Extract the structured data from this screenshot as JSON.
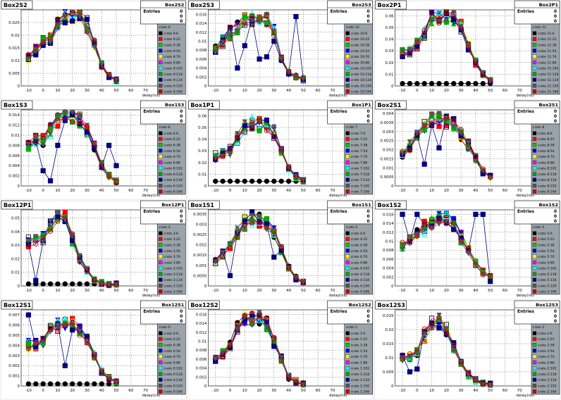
{
  "chart_data": [
    {
      "id": "p1",
      "type": "scatter",
      "title": "Box2S2",
      "ylabel_ticks": [
        "0",
        "0.005",
        "0.01",
        "0.015",
        "0.02",
        "0.025"
      ],
      "ylim": [
        0,
        0.03
      ],
      "xlim": [
        -15,
        80
      ],
      "xticks": [
        "-10",
        "0",
        "10",
        "20",
        "30",
        "40",
        "50",
        "60",
        "70",
        "80"
      ],
      "xlabel": "delay(ns)",
      "stats": {
        "header": "Box2S2",
        "label": "Entries",
        "rows": [
          "0",
          "0",
          "0"
        ]
      },
      "legend_title": "crate 9",
      "legend": [
        "crate 9:6",
        "crate 9:22",
        "crate 9:38",
        "crate 9:54",
        "crate 9:70",
        "crate 9:86",
        "crate 9:102",
        "crate 9:118",
        "crate 9:134",
        "crate 9:150",
        "crate 9:166"
      ],
      "anchor": [
        0.011,
        0.014,
        0.018,
        0.019,
        0.025,
        0.027,
        0.027,
        0.028,
        0.024,
        0.016,
        0.008,
        0.004,
        0.002
      ],
      "baseline": null,
      "outlier": null
    },
    {
      "id": "p2",
      "type": "scatter",
      "title": "Box2S3",
      "ylabel_ticks": [
        "0",
        "0.002",
        "0.004",
        "0.006",
        "0.008",
        "0.01",
        "0.012",
        "0.014",
        "0.016"
      ],
      "ylim": [
        0,
        0.017
      ],
      "xlim": [
        -15,
        80
      ],
      "xticks": [
        "-10",
        "0",
        "10",
        "20",
        "30",
        "40",
        "50",
        "60",
        "70",
        "80"
      ],
      "xlabel": "delay(ns)",
      "stats": {
        "header": "Box2S3",
        "label": "Entries",
        "rows": [
          "0",
          "0",
          "0"
        ]
      },
      "legend_title": "crate 10",
      "legend": [
        "crate 10:6",
        "crate 10:22",
        "crate 10:38",
        "crate 10:54",
        "crate 10:70",
        "crate 10:86",
        "crate 10:102",
        "crate 10:118",
        "crate 10:134",
        "crate 10:150",
        "crate 10:166"
      ],
      "anchor": [
        0.008,
        0.01,
        0.012,
        0.013,
        0.015,
        0.015,
        0.014,
        0.015,
        0.012,
        0.006,
        0.003,
        0.002,
        0.0015
      ],
      "baseline": null,
      "outlier": [
        [
          45,
          0.0155
        ],
        [
          10,
          0.009
        ],
        [
          20,
          0.006
        ],
        [
          25,
          0.0065
        ],
        [
          5,
          0.004
        ],
        [
          30,
          0.01
        ]
      ]
    },
    {
      "id": "p3",
      "type": "scatter",
      "title": "Box2P1",
      "ylabel_ticks": [
        "0",
        "0.01",
        "0.02",
        "0.03",
        "0.04",
        "0.05",
        "0.06"
      ],
      "ylim": [
        0,
        0.065
      ],
      "xlim": [
        -15,
        80
      ],
      "xticks": [
        "-10",
        "0",
        "10",
        "20",
        "30",
        "40",
        "50",
        "60",
        "70",
        "80"
      ],
      "xlabel": "delay(ns)",
      "stats": {
        "header": "Box2P1",
        "label": "Entries",
        "rows": [
          "0",
          "0",
          "0"
        ]
      },
      "legend_title": "crate 11",
      "legend": [
        "crate 11:6",
        "crate 11:22",
        "crate 11:38",
        "crate 11:54",
        "crate 11:70",
        "crate 11:86",
        "crate 11:102",
        "crate 11:118",
        "crate 11:134",
        "crate 11:150",
        "crate 11:166"
      ],
      "anchor": [
        0.028,
        0.03,
        0.035,
        0.045,
        0.058,
        0.06,
        0.06,
        0.058,
        0.05,
        0.035,
        0.02,
        0.01,
        0.005
      ],
      "baseline": 0.002,
      "outlier": null
    },
    {
      "id": "p4",
      "type": "scatter",
      "title": "Box1S3",
      "ylabel_ticks": [
        "0",
        "0.002",
        "0.004",
        "0.006",
        "0.008",
        "0.01",
        "0.012",
        "0.014"
      ],
      "ylim": [
        0,
        0.015
      ],
      "xlim": [
        -15,
        80
      ],
      "xticks": [
        "-10",
        "0",
        "10",
        "20",
        "30",
        "40",
        "50",
        "60",
        "70",
        "80"
      ],
      "xlabel": "delay(ns)",
      "stats": {
        "header": "Box1S3",
        "label": "Entries",
        "rows": [
          "0",
          "0",
          "0"
        ]
      },
      "legend_title": "crate 6",
      "legend": [
        "crate 6:6",
        "crate 6:22",
        "crate 6:38",
        "crate 6:54",
        "crate 6:70",
        "crate 6:86",
        "crate 6:102",
        "crate 6:118",
        "crate 6:134",
        "crate 6:150",
        "crate 6:166"
      ],
      "anchor": [
        0.008,
        0.009,
        0.009,
        0.011,
        0.013,
        0.014,
        0.014,
        0.013,
        0.011,
        0.008,
        0.004,
        0.002,
        0.001
      ],
      "baseline": null,
      "outlier": [
        [
          0,
          0.003
        ],
        [
          5,
          0.001
        ],
        [
          10,
          0.008
        ],
        [
          45,
          0.008
        ],
        [
          50,
          0.004
        ]
      ]
    },
    {
      "id": "p5",
      "type": "scatter",
      "title": "Box1P1",
      "ylabel_ticks": [
        "0",
        "0.01",
        "0.02",
        "0.03",
        "0.04",
        "0.05",
        "0.06"
      ],
      "ylim": [
        0,
        0.065
      ],
      "xlim": [
        -15,
        80
      ],
      "xticks": [
        "-10",
        "0",
        "10",
        "20",
        "30",
        "40",
        "50",
        "60",
        "70",
        "80"
      ],
      "xlabel": "delay(ns)",
      "stats": {
        "header": "Box1P1",
        "label": "Entries",
        "rows": [
          "0",
          "0",
          "0"
        ]
      },
      "legend_title": "crate 7",
      "legend": [
        "crate 7:6",
        "crate 7:22",
        "crate 7:38",
        "crate 7:54",
        "crate 7:70",
        "crate 7:86",
        "crate 7:102",
        "crate 7:118",
        "crate 7:134",
        "crate 7:150",
        "crate 7:166"
      ],
      "anchor": [
        0.025,
        0.028,
        0.03,
        0.04,
        0.05,
        0.053,
        0.053,
        0.052,
        0.045,
        0.03,
        0.015,
        0.008,
        0.004
      ],
      "baseline": 0.004,
      "outlier": null
    },
    {
      "id": "p6",
      "type": "scatter",
      "title": "Box2S1",
      "ylabel_ticks": [
        "0",
        "0.0005",
        "0.001",
        "0.0015",
        "0.002",
        "0.0025",
        "0.003",
        "0.0035",
        "0.004"
      ],
      "ylim": [
        0,
        0.0042
      ],
      "xlim": [
        -15,
        80
      ],
      "xticks": [
        "-10",
        "0",
        "10",
        "20",
        "30",
        "40",
        "50",
        "60",
        "70",
        "80"
      ],
      "xlabel": "delay(ns)",
      "stats": {
        "header": "Box2S1",
        "label": "Entries",
        "rows": [
          "0",
          "0",
          "0"
        ]
      },
      "legend_title": "crate 8",
      "legend": [
        "crate 8:6",
        "crate 8:22",
        "crate 8:38",
        "crate 8:54",
        "crate 8:70",
        "crate 8:86",
        "crate 8:102",
        "crate 8:118",
        "crate 8:134",
        "crate 8:150",
        "crate 8:166"
      ],
      "anchor": [
        0.0018,
        0.0022,
        0.0028,
        0.0033,
        0.0037,
        0.0037,
        0.0036,
        0.0034,
        0.0028,
        0.0022,
        0.0015,
        0.0008,
        0.0005
      ],
      "baseline": null,
      "outlier": [
        [
          15,
          0.0021
        ],
        [
          5,
          0.0012
        ]
      ]
    },
    {
      "id": "p7",
      "type": "scatter",
      "title": "Box12P1",
      "ylabel_ticks": [
        "0",
        "0.01",
        "0.02",
        "0.03",
        "0.04",
        "0.05"
      ],
      "ylim": [
        0,
        0.056
      ],
      "xlim": [
        -15,
        80
      ],
      "xticks": [
        "-10",
        "0",
        "10",
        "20",
        "30",
        "40",
        "50",
        "60",
        "70",
        "80"
      ],
      "xlabel": "delay(ns)",
      "stats": {
        "header": "Box12P1",
        "label": "Entries",
        "rows": [
          "0",
          "0",
          "0"
        ]
      },
      "legend_title": "crate 3",
      "legend": [
        "crate 3:6",
        "crate 3:22",
        "crate 3:38",
        "crate 3:54",
        "crate 3:70",
        "crate 3:86",
        "crate 3:102",
        "crate 3:118",
        "crate 3:134",
        "crate 3:150",
        "crate 3:166"
      ],
      "anchor": [
        0.032,
        0.034,
        0.035,
        0.045,
        0.052,
        0.05,
        0.035,
        0.02,
        0.012,
        0.005,
        0.002,
        0.001,
        0.001
      ],
      "baseline": 0.0015,
      "outlier": [
        [
          -5,
          0.004
        ]
      ]
    },
    {
      "id": "p8",
      "type": "scatter",
      "title": "Box1S1",
      "ylabel_ticks": [
        "0",
        "0.0005",
        "0.001",
        "0.0015",
        "0.002",
        "0.0025",
        "0.003",
        "0.0035"
      ],
      "ylim": [
        0,
        0.0037
      ],
      "xlim": [
        -15,
        80
      ],
      "xticks": [
        "-10",
        "0",
        "10",
        "20",
        "30",
        "40",
        "50",
        "60",
        "70",
        "80"
      ],
      "xlabel": "delay(ns)",
      "stats": {
        "header": "Box1S1",
        "label": "Entries",
        "rows": [
          "0",
          "0",
          "0"
        ]
      },
      "legend_title": "crate 4",
      "legend": [
        "crate 4:6",
        "crate 4:22",
        "crate 4:38",
        "crate 4:54",
        "crate 4:70",
        "crate 4:86",
        "crate 4:102",
        "crate 4:118",
        "crate 4:134",
        "crate 4:150",
        "crate 4:166"
      ],
      "anchor": [
        0.0012,
        0.0016,
        0.002,
        0.0026,
        0.0031,
        0.0033,
        0.0032,
        0.003,
        0.0026,
        0.0018,
        0.0009,
        0.0004,
        0.0002
      ],
      "baseline": null,
      "outlier": [
        [
          0,
          0.0005
        ],
        [
          30,
          0.0014
        ]
      ]
    },
    {
      "id": "p9",
      "type": "scatter",
      "title": "Box1S2",
      "ylabel_ticks": [
        "0",
        "0.002",
        "0.004",
        "0.006",
        "0.008",
        "0.01",
        "0.012",
        "0.014",
        "0.016"
      ],
      "ylim": [
        0,
        0.017
      ],
      "xlim": [
        -15,
        80
      ],
      "xticks": [
        "-10",
        "0",
        "10",
        "20",
        "30",
        "40",
        "50",
        "60",
        "70",
        "80"
      ],
      "xlabel": "delay(ns)",
      "stats": {
        "header": "Box1S2",
        "label": "Entries",
        "rows": [
          "0",
          "0",
          "0"
        ]
      },
      "legend_title": "crate 5",
      "legend": [
        "crate 5:6",
        "crate 5:22",
        "crate 5:38",
        "crate 5:54",
        "crate 5:70",
        "crate 5:86",
        "crate 5:102",
        "crate 5:118",
        "crate 5:134",
        "crate 5:150",
        "crate 5:166"
      ],
      "anchor": [
        0.009,
        0.01,
        0.012,
        0.013,
        0.014,
        0.015,
        0.015,
        0.014,
        0.011,
        0.008,
        0.005,
        0.003,
        0.002
      ],
      "baseline": null,
      "outlier": [
        [
          -10,
          0.016
        ],
        [
          0,
          0.016
        ],
        [
          40,
          0.016
        ],
        [
          45,
          0.016
        ],
        [
          50,
          0.001
        ]
      ]
    },
    {
      "id": "p10",
      "type": "scatter",
      "title": "Box12S1",
      "ylabel_ticks": [
        "0",
        "0.001",
        "0.002",
        "0.003",
        "0.004",
        "0.005",
        "0.006",
        "0.007"
      ],
      "ylim": [
        0,
        0.0075
      ],
      "xlim": [
        -15,
        80
      ],
      "xticks": [
        "-10",
        "0",
        "10",
        "20",
        "30",
        "40",
        "50",
        "60",
        "70",
        "80"
      ],
      "xlabel": "delay(ns)",
      "stats": {
        "header": "Box12S1",
        "label": "Entries",
        "rows": [
          "0",
          "0",
          "0"
        ]
      },
      "legend_title": "crate 0",
      "legend": [
        "crate 0:6",
        "crate 0:22",
        "crate 0:38",
        "crate 0:54",
        "crate 0:70",
        "crate 0:86",
        "crate 0:102",
        "crate 0:118",
        "crate 0:134",
        "crate 0:150",
        "crate 0:166"
      ],
      "anchor": [
        0.004,
        0.004,
        0.0045,
        0.0055,
        0.006,
        0.0062,
        0.006,
        0.0055,
        0.0045,
        0.003,
        0.0015,
        0.0008,
        0.0004
      ],
      "baseline": 0.0002,
      "outlier": [
        [
          -10,
          0.007
        ],
        [
          15,
          0.002
        ]
      ]
    },
    {
      "id": "p11",
      "type": "scatter",
      "title": "Box12S2",
      "ylabel_ticks": [
        "0",
        "0.002",
        "0.004",
        "0.006",
        "0.008",
        "0.01",
        "0.012",
        "0.014",
        "0.016"
      ],
      "ylim": [
        0,
        0.017
      ],
      "xlim": [
        -15,
        80
      ],
      "xticks": [
        "-10",
        "0",
        "10",
        "20",
        "30",
        "40",
        "50",
        "60",
        "70",
        "80"
      ],
      "xlabel": "delay(ns)",
      "stats": {
        "header": "Box12S2",
        "label": "Entries",
        "rows": [
          "0",
          "0",
          "0"
        ]
      },
      "legend_title": "crate 1",
      "legend": [
        "crate 1:6",
        "crate 1:22",
        "crate 1:38",
        "crate 1:54",
        "crate 1:70",
        "crate 1:86",
        "crate 1:102",
        "crate 1:118",
        "crate 1:134",
        "crate 1:150",
        "crate 1:166"
      ],
      "anchor": [
        0.006,
        0.007,
        0.009,
        0.013,
        0.015,
        0.015,
        0.015,
        0.014,
        0.01,
        0.006,
        0.002,
        0.001,
        0.0005
      ],
      "baseline": null,
      "outlier": null
    },
    {
      "id": "p12",
      "type": "scatter",
      "title": "Box12S3",
      "ylabel_ticks": [
        "0",
        "0.005",
        "0.01",
        "0.015",
        "0.02",
        "0.025"
      ],
      "ylim": [
        0,
        0.027
      ],
      "xlim": [
        -15,
        80
      ],
      "xticks": [
        "-10",
        "0",
        "10",
        "20",
        "30",
        "40",
        "50",
        "60",
        "70",
        "80"
      ],
      "xlabel": "delay(ns)",
      "stats": {
        "header": "Box12S3",
        "label": "Entries",
        "rows": [
          "0",
          "0",
          "0"
        ]
      },
      "legend_title": "crate 2",
      "legend": [
        "crate 2:6",
        "crate 2:22",
        "crate 2:38",
        "crate 2:54",
        "crate 2:70",
        "crate 2:86",
        "crate 2:102",
        "crate 2:118",
        "crate 2:134",
        "crate 2:150",
        "crate 2:166"
      ],
      "anchor": [
        0.01,
        0.01,
        0.012,
        0.018,
        0.022,
        0.023,
        0.02,
        0.014,
        0.008,
        0.004,
        0.002,
        0.001,
        0.0005
      ],
      "baseline": null,
      "outlier": [
        [
          -5,
          0.005
        ],
        [
          0,
          0.006
        ]
      ]
    }
  ],
  "series_colors": [
    "#000000",
    "#ff0000",
    "#00c800",
    "#0000ff",
    "#ffff00",
    "#ff00ff",
    "#00ffff",
    "#00aa00",
    "#000080",
    "#555555",
    "#cc0000"
  ],
  "marker_shapes": [
    "circle",
    "square",
    "triangle-up",
    "triangle-down",
    "circle-open",
    "square-open",
    "triangle-open",
    "square",
    "square",
    "triangle-down",
    "circle-open"
  ]
}
